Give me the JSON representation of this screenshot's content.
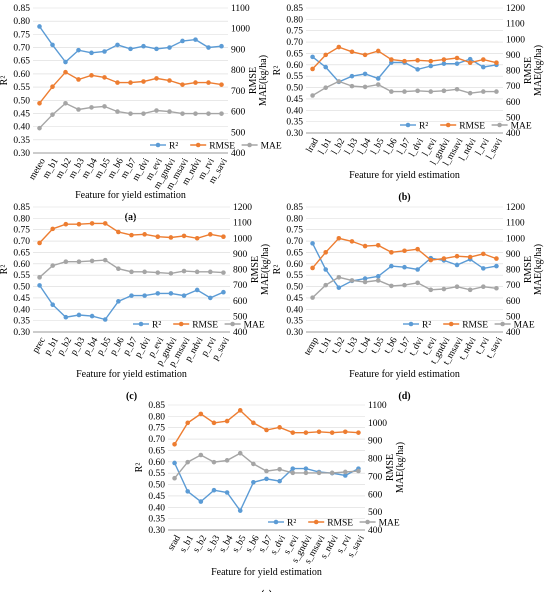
{
  "colors": {
    "r2": "#5b9bd5",
    "rmse": "#ed7d31",
    "mae": "#a5a5a5",
    "grid": "#d9d9d9",
    "axis": "#7f7f7f",
    "text": "#000000"
  },
  "chart_data": [
    {
      "type": "line",
      "panel_label": "(a)",
      "xlabel": "Feature for yield estimation",
      "ylabel_left": "R²",
      "ylabel_right": "RMSE\nMAE(kg/ha)",
      "left_ylim": [
        0.3,
        0.85
      ],
      "left_ticks": [
        "0.30",
        "0.35",
        "0.40",
        "0.45",
        "0.50",
        "0.55",
        "0.60",
        "0.65",
        "0.70",
        "0.75",
        "0.80",
        "0.85"
      ],
      "right_ylim": [
        400,
        1100
      ],
      "right_ticks": [
        "400",
        "500",
        "600",
        "700",
        "800",
        "900",
        "1000",
        "1100"
      ],
      "grid": true,
      "legend_position": "bottom-right",
      "categories": [
        "meteo",
        "m_b1",
        "m_b2",
        "m_b3",
        "m_b4",
        "m_b5",
        "m_b6",
        "m_b7",
        "m_dvi",
        "m_evi",
        "m_gndvi",
        "m_msavi",
        "m_ndvi",
        "m_rvi",
        "m_savi"
      ],
      "series": [
        {
          "name": "R²",
          "axis": "left",
          "values": [
            0.78,
            0.71,
            0.645,
            0.69,
            0.68,
            0.685,
            0.71,
            0.695,
            0.705,
            0.695,
            0.7,
            0.725,
            0.73,
            0.7,
            0.705
          ]
        },
        {
          "name": "RMSE",
          "axis": "right",
          "values": [
            640,
            720,
            790,
            755,
            775,
            765,
            740,
            740,
            745,
            760,
            750,
            730,
            740,
            740,
            730
          ]
        },
        {
          "name": "MAE",
          "axis": "right",
          "values": [
            520,
            585,
            640,
            610,
            620,
            625,
            600,
            590,
            590,
            605,
            600,
            590,
            590,
            590,
            590
          ]
        }
      ]
    },
    {
      "type": "line",
      "panel_label": "(b)",
      "xlabel": "Feature for yield estimation",
      "ylabel_left": "R²",
      "ylabel_right": "RMSE\nMAE(kg/ha)",
      "left_ylim": [
        0.3,
        0.85
      ],
      "left_ticks": [
        "0.30",
        "0.35",
        "0.40",
        "0.45",
        "0.50",
        "0.55",
        "0.60",
        "0.65",
        "0.70",
        "0.75",
        "0.80",
        "0.85"
      ],
      "right_ylim": [
        400,
        1200
      ],
      "right_ticks": [
        "400",
        "500",
        "600",
        "700",
        "800",
        "900",
        "1000",
        "1100",
        "1200"
      ],
      "grid": true,
      "legend_position": "bottom-center",
      "categories": [
        "lrad",
        "l_b1",
        "l_b2",
        "l_b3",
        "l_b4",
        "l_b5",
        "l_b6",
        "l_b7",
        "l_dvi",
        "l_evi",
        "l_gndvi",
        "l_msavi",
        "l_ndvi",
        "l_rvi",
        "l_savi"
      ],
      "series": [
        {
          "name": "R²",
          "axis": "left",
          "values": [
            0.635,
            0.59,
            0.525,
            0.55,
            0.56,
            0.54,
            0.61,
            0.61,
            0.58,
            0.595,
            0.605,
            0.605,
            0.625,
            0.59,
            0.6
          ]
        },
        {
          "name": "RMSE",
          "axis": "right",
          "values": [
            810,
            900,
            950,
            920,
            900,
            925,
            870,
            860,
            865,
            860,
            870,
            880,
            850,
            870,
            850
          ]
        },
        {
          "name": "MAE",
          "axis": "right",
          "values": [
            640,
            690,
            730,
            700,
            695,
            710,
            665,
            665,
            670,
            665,
            670,
            680,
            655,
            665,
            665
          ]
        }
      ]
    },
    {
      "type": "line",
      "panel_label": "(c)",
      "xlabel": "Feature for yield estimation",
      "ylabel_left": "R²",
      "ylabel_right": "RMSE\nMAE(kg/ha)",
      "left_ylim": [
        0.3,
        0.85
      ],
      "left_ticks": [
        "0.30",
        "0.35",
        "0.40",
        "0.45",
        "0.50",
        "0.55",
        "0.60",
        "0.65",
        "0.70",
        "0.75",
        "0.80",
        "0.85"
      ],
      "right_ylim": [
        400,
        1200
      ],
      "right_ticks": [
        "400",
        "500",
        "600",
        "700",
        "800",
        "900",
        "1000",
        "1100",
        "1200"
      ],
      "grid": true,
      "legend_position": "bottom-right",
      "categories": [
        "prec",
        "p_b1",
        "p_b2",
        "p_b3",
        "p_b4",
        "p_b5",
        "p_b6",
        "p_b7",
        "p_dvi",
        "p_evi",
        "p_gndvi",
        "p_msavi",
        "p_ndvi",
        "p_rvi",
        "p_savi"
      ],
      "series": [
        {
          "name": "R²",
          "axis": "left",
          "values": [
            0.505,
            0.42,
            0.365,
            0.375,
            0.37,
            0.355,
            0.435,
            0.46,
            0.46,
            0.47,
            0.47,
            0.46,
            0.485,
            0.45,
            0.475
          ]
        },
        {
          "name": "RMSE",
          "axis": "right",
          "values": [
            970,
            1060,
            1090,
            1090,
            1095,
            1095,
            1040,
            1020,
            1025,
            1010,
            1005,
            1015,
            1000,
            1025,
            1010
          ]
        },
        {
          "name": "MAE",
          "axis": "right",
          "values": [
            750,
            825,
            850,
            850,
            855,
            860,
            805,
            785,
            785,
            780,
            775,
            790,
            785,
            785,
            780
          ]
        }
      ]
    },
    {
      "type": "line",
      "panel_label": "(d)",
      "xlabel": "Feature for yield estimation",
      "ylabel_left": "R²",
      "ylabel_right": "RMSE\nMAE(kg/ha)",
      "left_ylim": [
        0.3,
        0.85
      ],
      "left_ticks": [
        "0.30",
        "0.35",
        "0.40",
        "0.45",
        "0.50",
        "0.55",
        "0.60",
        "0.65",
        "0.70",
        "0.75",
        "0.80",
        "0.85"
      ],
      "right_ylim": [
        400,
        1200
      ],
      "right_ticks": [
        "400",
        "500",
        "600",
        "700",
        "800",
        "900",
        "1000",
        "1100",
        "1200"
      ],
      "grid": true,
      "legend_position": "bottom-right",
      "categories": [
        "temp",
        "t_b1",
        "t_b2",
        "t_b3",
        "t_b4",
        "t_b5",
        "t_b6",
        "t_b7",
        "t_dvi",
        "t_evi",
        "t_gndvi",
        "t_msavi",
        "t_ndvi",
        "t_rvi",
        "t_savi"
      ],
      "series": [
        {
          "name": "R²",
          "axis": "left",
          "values": [
            0.69,
            0.575,
            0.495,
            0.525,
            0.535,
            0.545,
            0.59,
            0.585,
            0.575,
            0.625,
            0.615,
            0.595,
            0.62,
            0.58,
            0.59
          ]
        },
        {
          "name": "RMSE",
          "axis": "right",
          "values": [
            810,
            910,
            1000,
            980,
            950,
            955,
            910,
            920,
            930,
            860,
            870,
            885,
            880,
            900,
            870
          ]
        },
        {
          "name": "MAE",
          "axis": "right",
          "values": [
            620,
            700,
            750,
            730,
            720,
            730,
            695,
            700,
            715,
            670,
            675,
            690,
            670,
            690,
            680
          ]
        }
      ]
    },
    {
      "type": "line",
      "panel_label": "(e)",
      "xlabel": "Feature for yield estimation",
      "ylabel_left": "R²",
      "ylabel_right": "RMSE\nMAE(kg/ha)",
      "left_ylim": [
        0.3,
        0.85
      ],
      "left_ticks": [
        "0.30",
        "0.35",
        "0.40",
        "0.45",
        "0.50",
        "0.55",
        "0.60",
        "0.65",
        "0.70",
        "0.75",
        "0.80",
        "0.85"
      ],
      "right_ylim": [
        400,
        1100
      ],
      "right_ticks": [
        "400",
        "500",
        "600",
        "700",
        "800",
        "900",
        "1000",
        "1100"
      ],
      "grid": true,
      "legend_position": "bottom-center",
      "categories": [
        "srad",
        "s_b1",
        "s_b2",
        "s_b3",
        "s_b4",
        "s_b5",
        "s_b6",
        "s_b7",
        "s_dvi",
        "s_evi",
        "s_gndvi",
        "s_msavi",
        "s_ndvi",
        "s_rvi",
        "s_savi"
      ],
      "series": [
        {
          "name": "R²",
          "axis": "left",
          "values": [
            0.595,
            0.47,
            0.425,
            0.475,
            0.465,
            0.385,
            0.51,
            0.525,
            0.515,
            0.57,
            0.57,
            0.555,
            0.55,
            0.54,
            0.57
          ]
        },
        {
          "name": "RMSE",
          "axis": "right",
          "values": [
            880,
            1000,
            1050,
            1000,
            1010,
            1070,
            1000,
            960,
            975,
            945,
            945,
            950,
            945,
            950,
            945
          ]
        },
        {
          "name": "MAE",
          "axis": "right",
          "values": [
            690,
            780,
            820,
            780,
            790,
            830,
            770,
            730,
            740,
            720,
            720,
            720,
            720,
            725,
            730
          ]
        }
      ]
    }
  ]
}
